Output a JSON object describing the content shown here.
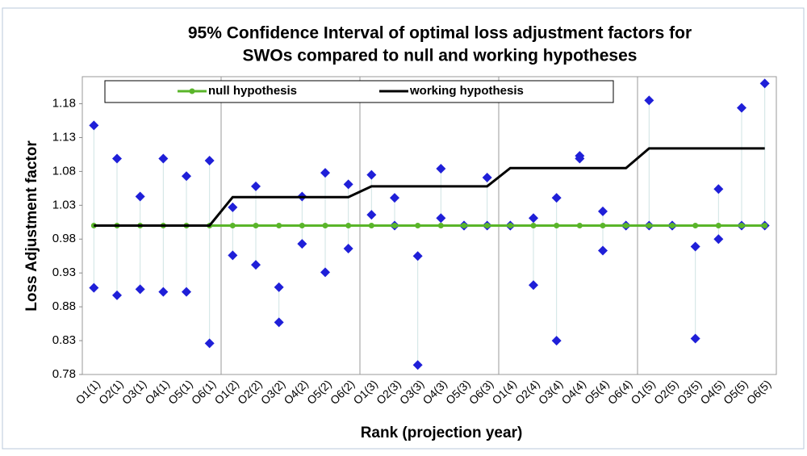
{
  "chart_data": {
    "type": "line",
    "title": [
      "95% Confidence Interval of optimal loss adjustment factors for",
      "SWOs compared to null and working hypotheses"
    ],
    "x_label": "Rank (projection year)",
    "y_label": "Loss Adjustment factor",
    "categories": [
      "O1(1)",
      "O2(1)",
      "O3(1)",
      "O4(1)",
      "O5(1)",
      "O6(1)",
      "O1(2)",
      "O2(2)",
      "O3(2)",
      "O4(2)",
      "O5(2)",
      "O6(2)",
      "O1(3)",
      "O2(3)",
      "O3(3)",
      "O4(3)",
      "O5(3)",
      "O6(3)",
      "O1(4)",
      "O2(4)",
      "O3(4)",
      "O4(4)",
      "O5(4)",
      "O6(4)",
      "O1(5)",
      "O2(5)",
      "O3(5)",
      "O4(5)",
      "O5(5)",
      "O6(5)"
    ],
    "series": [
      {
        "name": "null hypothesis",
        "color": "#5ab52a",
        "values": [
          1,
          1,
          1,
          1,
          1,
          1,
          1,
          1,
          1,
          1,
          1,
          1,
          1,
          1,
          1,
          1,
          1,
          1,
          1,
          1,
          1,
          1,
          1,
          1,
          1,
          1,
          1,
          1,
          1,
          1
        ]
      },
      {
        "name": "working hypothesis",
        "color": "#000000",
        "values": [
          1,
          1,
          1,
          1,
          1,
          1,
          1.042,
          1.042,
          1.042,
          1.042,
          1.042,
          1.042,
          1.058,
          1.058,
          1.058,
          1.058,
          1.058,
          1.058,
          1.085,
          1.085,
          1.085,
          1.085,
          1.085,
          1.085,
          1.114,
          1.114,
          1.114,
          1.114,
          1.114,
          1.114
        ]
      }
    ],
    "intervals": {
      "color": "#1f1fd8",
      "upper": [
        1.148,
        1.099,
        1.043,
        1.099,
        1.073,
        1.096,
        1.027,
        1.058,
        0.909,
        1.043,
        1.078,
        1.061,
        1.075,
        1.041,
        0.955,
        1.084,
        1.0,
        1.071,
        1.0,
        1.011,
        1.041,
        1.103,
        1.021,
        1.0,
        1.185,
        1.0,
        0.969,
        1.054,
        1.174,
        1.21
      ],
      "lower": [
        0.908,
        0.897,
        0.906,
        0.902,
        0.902,
        0.826,
        0.956,
        0.942,
        0.857,
        0.973,
        0.931,
        0.966,
        1.016,
        1.0,
        0.794,
        1.011,
        1.0,
        1.0,
        1.0,
        0.912,
        0.83,
        1.099,
        0.963,
        1.0,
        1.0,
        1.0,
        0.833,
        0.98,
        1.0,
        1.0
      ]
    },
    "ylim": [
      0.78,
      1.22
    ],
    "yticks": [
      0.78,
      0.83,
      0.88,
      0.93,
      0.98,
      1.03,
      1.08,
      1.13,
      1.18
    ],
    "legend": "top"
  }
}
